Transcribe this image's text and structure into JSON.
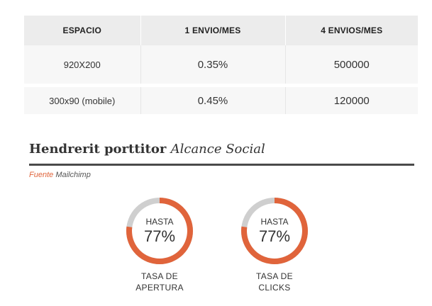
{
  "table": {
    "headers": [
      "ESPACIO",
      "1 ENVIO/MES",
      "4 ENVIOS/MES"
    ],
    "rows": [
      [
        "920X200",
        "0.35%",
        "500000"
      ],
      [
        "300x90 (mobile)",
        "0.45%",
        "120000"
      ]
    ]
  },
  "section": {
    "title": "Hendrerit porttitor",
    "subtitle": "Alcance Social",
    "source_label": "Fuente",
    "source_value": "Mailchimp"
  },
  "metrics": [
    {
      "prefix": "HASTA",
      "value": "77%",
      "percent": 77,
      "caption_line1": "TASA DE",
      "caption_line2": "APERTURA"
    },
    {
      "prefix": "HASTA",
      "value": "77%",
      "percent": 77,
      "caption_line1": "TASA DE",
      "caption_line2": "CLICKS"
    }
  ],
  "colors": {
    "accent": "#e0643b",
    "ring_track": "#cfcfcf",
    "header_bg": "#ececec"
  }
}
